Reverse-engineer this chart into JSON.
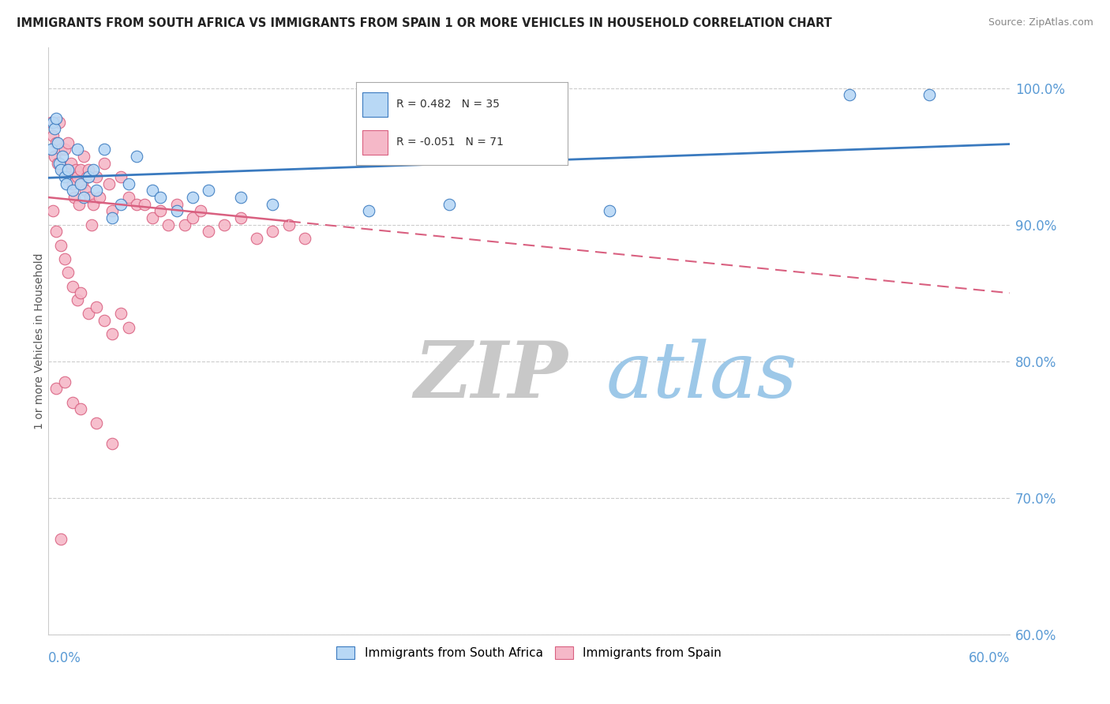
{
  "title": "IMMIGRANTS FROM SOUTH AFRICA VS IMMIGRANTS FROM SPAIN 1 OR MORE VEHICLES IN HOUSEHOLD CORRELATION CHART",
  "source": "Source: ZipAtlas.com",
  "ylabel": "1 or more Vehicles in Household",
  "r_south_africa": 0.482,
  "n_south_africa": 35,
  "r_spain": -0.051,
  "n_spain": 71,
  "xmin": 0.0,
  "xmax": 60.0,
  "ymin": 60.0,
  "ymax": 103.0,
  "yticks": [
    60.0,
    70.0,
    80.0,
    90.0,
    100.0
  ],
  "ytick_labels": [
    "60.0%",
    "70.0%",
    "80.0%",
    "90.0%",
    "100.0%"
  ],
  "color_south_africa": "#b8d8f5",
  "color_spain": "#f5b8c8",
  "trend_color_south_africa": "#3a7abf",
  "trend_color_spain": "#d96080",
  "background_color": "#ffffff",
  "watermark_zip": "ZIP",
  "watermark_atlas": "atlas",
  "watermark_color_zip": "#c8c8c8",
  "watermark_color_atlas": "#9dc8e8",
  "south_africa_points": [
    [
      0.2,
      95.5
    ],
    [
      0.3,
      97.5
    ],
    [
      0.4,
      97.0
    ],
    [
      0.5,
      97.8
    ],
    [
      0.6,
      96.0
    ],
    [
      0.7,
      94.5
    ],
    [
      0.8,
      94.0
    ],
    [
      0.9,
      95.0
    ],
    [
      1.0,
      93.5
    ],
    [
      1.1,
      93.0
    ],
    [
      1.2,
      94.0
    ],
    [
      1.5,
      92.5
    ],
    [
      1.8,
      95.5
    ],
    [
      2.0,
      93.0
    ],
    [
      2.2,
      92.0
    ],
    [
      2.5,
      93.5
    ],
    [
      2.8,
      94.0
    ],
    [
      3.0,
      92.5
    ],
    [
      3.5,
      95.5
    ],
    [
      4.0,
      90.5
    ],
    [
      4.5,
      91.5
    ],
    [
      5.0,
      93.0
    ],
    [
      5.5,
      95.0
    ],
    [
      6.5,
      92.5
    ],
    [
      7.0,
      92.0
    ],
    [
      8.0,
      91.0
    ],
    [
      9.0,
      92.0
    ],
    [
      10.0,
      92.5
    ],
    [
      12.0,
      92.0
    ],
    [
      14.0,
      91.5
    ],
    [
      20.0,
      91.0
    ],
    [
      25.0,
      91.5
    ],
    [
      35.0,
      91.0
    ],
    [
      50.0,
      99.5
    ],
    [
      55.0,
      99.5
    ]
  ],
  "spain_points": [
    [
      0.2,
      97.5
    ],
    [
      0.3,
      96.5
    ],
    [
      0.4,
      95.0
    ],
    [
      0.5,
      96.0
    ],
    [
      0.6,
      94.5
    ],
    [
      0.7,
      97.5
    ],
    [
      0.8,
      95.5
    ],
    [
      0.9,
      94.0
    ],
    [
      1.0,
      95.5
    ],
    [
      1.1,
      94.0
    ],
    [
      1.2,
      96.0
    ],
    [
      1.3,
      93.5
    ],
    [
      1.4,
      94.5
    ],
    [
      1.5,
      93.0
    ],
    [
      1.6,
      92.0
    ],
    [
      1.7,
      94.0
    ],
    [
      1.8,
      93.5
    ],
    [
      1.9,
      91.5
    ],
    [
      2.0,
      94.0
    ],
    [
      2.1,
      93.0
    ],
    [
      2.2,
      95.0
    ],
    [
      2.3,
      92.5
    ],
    [
      2.4,
      93.5
    ],
    [
      2.5,
      94.0
    ],
    [
      2.6,
      92.0
    ],
    [
      2.7,
      90.0
    ],
    [
      2.8,
      91.5
    ],
    [
      3.0,
      93.5
    ],
    [
      3.2,
      92.0
    ],
    [
      3.5,
      94.5
    ],
    [
      3.8,
      93.0
    ],
    [
      4.0,
      91.0
    ],
    [
      4.5,
      93.5
    ],
    [
      5.0,
      92.0
    ],
    [
      5.5,
      91.5
    ],
    [
      6.0,
      91.5
    ],
    [
      6.5,
      90.5
    ],
    [
      7.0,
      91.0
    ],
    [
      7.5,
      90.0
    ],
    [
      8.0,
      91.5
    ],
    [
      8.5,
      90.0
    ],
    [
      9.0,
      90.5
    ],
    [
      9.5,
      91.0
    ],
    [
      10.0,
      89.5
    ],
    [
      11.0,
      90.0
    ],
    [
      12.0,
      90.5
    ],
    [
      13.0,
      89.0
    ],
    [
      14.0,
      89.5
    ],
    [
      15.0,
      90.0
    ],
    [
      16.0,
      89.0
    ],
    [
      0.3,
      91.0
    ],
    [
      0.5,
      89.5
    ],
    [
      0.8,
      88.5
    ],
    [
      1.0,
      87.5
    ],
    [
      1.2,
      86.5
    ],
    [
      1.5,
      85.5
    ],
    [
      1.8,
      84.5
    ],
    [
      2.0,
      85.0
    ],
    [
      2.5,
      83.5
    ],
    [
      3.0,
      84.0
    ],
    [
      3.5,
      83.0
    ],
    [
      4.0,
      82.0
    ],
    [
      4.5,
      83.5
    ],
    [
      5.0,
      82.5
    ],
    [
      0.5,
      78.0
    ],
    [
      1.0,
      78.5
    ],
    [
      1.5,
      77.0
    ],
    [
      2.0,
      76.5
    ],
    [
      3.0,
      75.5
    ],
    [
      4.0,
      74.0
    ],
    [
      0.8,
      67.0
    ]
  ]
}
